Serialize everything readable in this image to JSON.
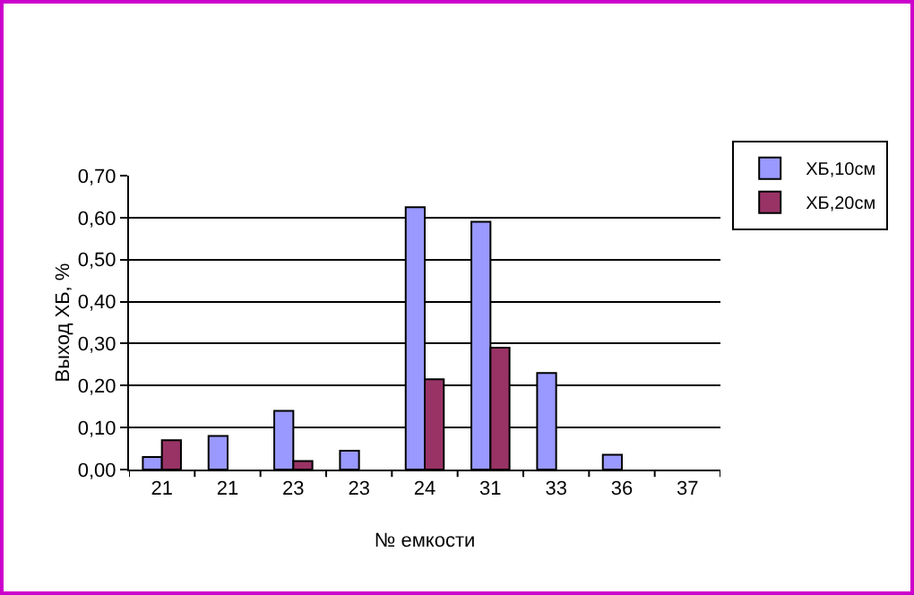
{
  "chart_data": {
    "type": "bar",
    "xlabel": "№ емкости",
    "ylabel": "Выход ХБ, %",
    "categories": [
      "21",
      "21",
      "23",
      "23",
      "24",
      "31",
      "33",
      "36",
      "37"
    ],
    "series": [
      {
        "name": "ХБ,10см",
        "color": "#9999ff",
        "values": [
          0.03,
          0.08,
          0.14,
          0.045,
          0.625,
          0.59,
          0.23,
          0.035,
          null
        ]
      },
      {
        "name": "ХБ,20см",
        "color": "#993366",
        "values": [
          0.07,
          null,
          0.02,
          null,
          0.215,
          0.29,
          null,
          null,
          null
        ]
      }
    ],
    "ylim": [
      0,
      0.7
    ],
    "yticks": [
      {
        "value": 0,
        "label": "0,00"
      },
      {
        "value": 0.1,
        "label": "0,10"
      },
      {
        "value": 0.2,
        "label": "0,20"
      },
      {
        "value": 0.3,
        "label": "0,30"
      },
      {
        "value": 0.4,
        "label": "0,40"
      },
      {
        "value": 0.5,
        "label": "0,50"
      },
      {
        "value": 0.6,
        "label": "0,60"
      },
      {
        "value": 0.7,
        "label": "0,70"
      }
    ],
    "grid": "y",
    "legend": "right"
  }
}
